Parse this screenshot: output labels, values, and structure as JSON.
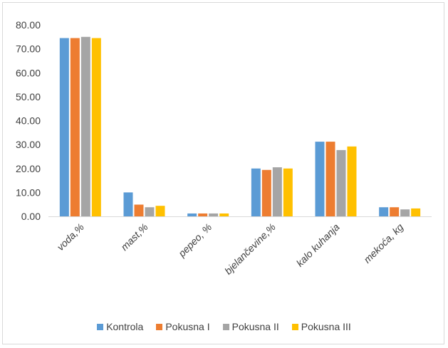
{
  "chart_data": {
    "type": "bar",
    "categories": [
      "voda,%",
      "mast,%",
      "pepeo, %",
      "bjelančevine,%",
      "kalo kuhanja",
      "mekoća, kg"
    ],
    "series": [
      {
        "name": "Kontrola",
        "color": "#5B9BD5",
        "values": [
          74.5,
          10.0,
          1.2,
          20.0,
          31.2,
          3.8
        ]
      },
      {
        "name": "Pokusna I",
        "color": "#ED7D31",
        "values": [
          74.5,
          4.9,
          1.2,
          19.4,
          31.2,
          3.8
        ]
      },
      {
        "name": "Pokusna II",
        "color": "#A5A5A5",
        "values": [
          75.0,
          3.8,
          1.2,
          20.5,
          27.7,
          2.9
        ]
      },
      {
        "name": "Pokusna III",
        "color": "#FFC000",
        "values": [
          74.5,
          4.4,
          1.2,
          20.0,
          29.2,
          3.3
        ]
      }
    ],
    "yticks": [
      "0.00",
      "10.00",
      "20.00",
      "30.00",
      "40.00",
      "50.00",
      "60.00",
      "70.00",
      "80.00"
    ],
    "ylim": [
      0,
      80
    ],
    "grid": false,
    "legend": "bottom"
  }
}
